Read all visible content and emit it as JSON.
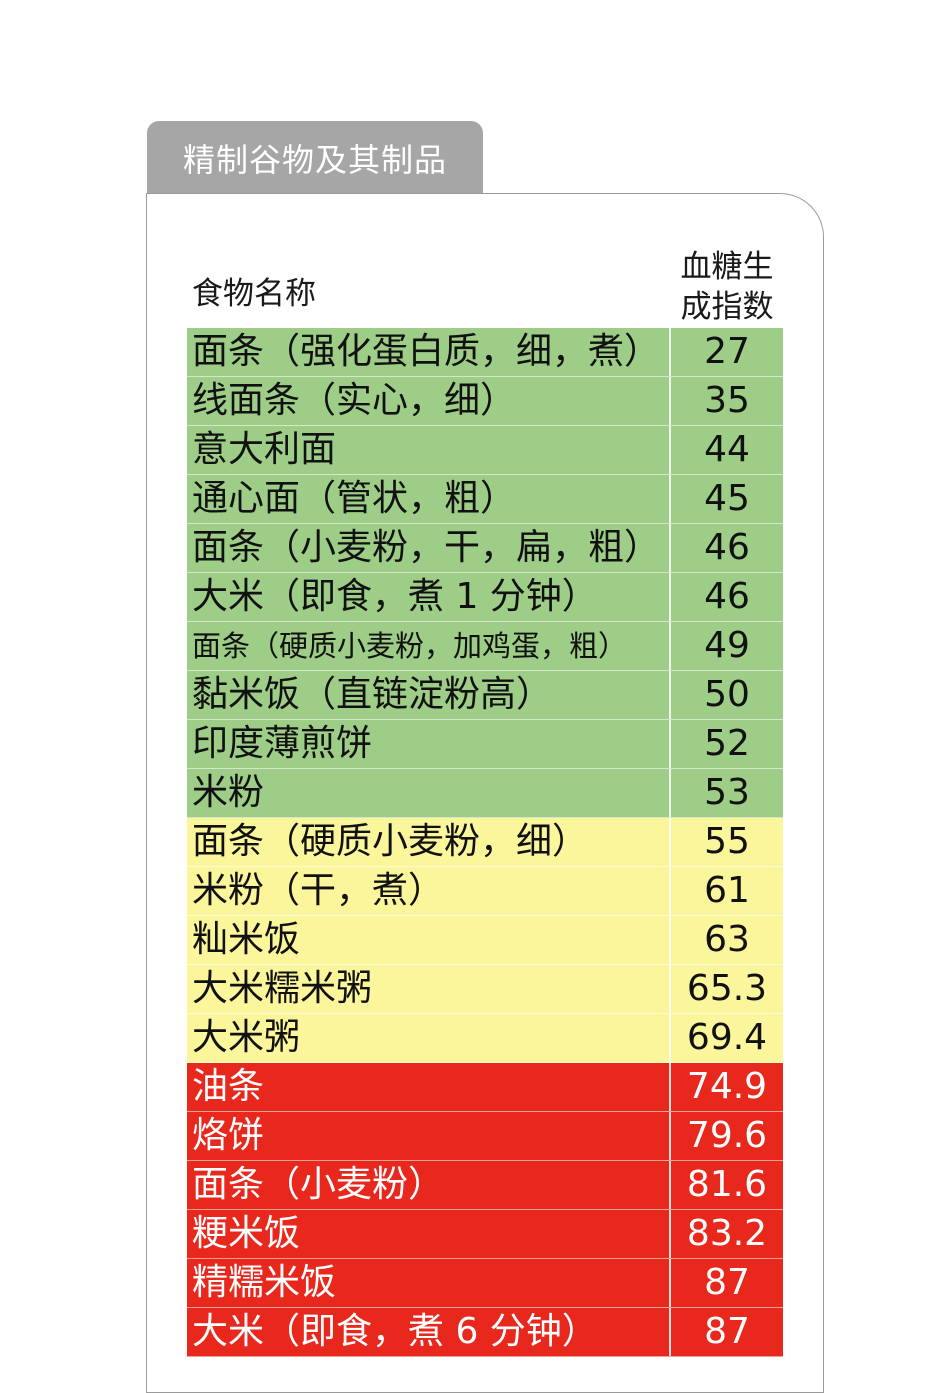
{
  "category": "精制谷物及其制品",
  "header": {
    "name_label": "食物名称",
    "gi_label_line1": "血糖生",
    "gi_label_line2": "成指数"
  },
  "colors": {
    "low": "#9dcd86",
    "medium": "#fbf59b",
    "high": "#e8281c"
  },
  "rows": [
    {
      "name": "面条（强化蛋白质，细，煮）",
      "gi": "27",
      "level": "low"
    },
    {
      "name": "线面条（实心，细）",
      "gi": "35",
      "level": "low"
    },
    {
      "name": "意大利面",
      "gi": "44",
      "level": "low"
    },
    {
      "name": "通心面（管状，粗）",
      "gi": "45",
      "level": "low"
    },
    {
      "name": "面条（小麦粉，干，扁，粗）",
      "gi": "46",
      "level": "low"
    },
    {
      "name": "大米（即食，煮 1 分钟）",
      "gi": "46",
      "level": "low"
    },
    {
      "name": "面条（硬质小麦粉，加鸡蛋，粗）",
      "gi": "49",
      "level": "low",
      "small": true
    },
    {
      "name": "黏米饭（直链淀粉高）",
      "gi": "50",
      "level": "low"
    },
    {
      "name": "印度薄煎饼",
      "gi": "52",
      "level": "low"
    },
    {
      "name": "米粉",
      "gi": "53",
      "level": "low"
    },
    {
      "name": "面条（硬质小麦粉，细）",
      "gi": "55",
      "level": "medium"
    },
    {
      "name": "米粉（干，煮）",
      "gi": "61",
      "level": "medium"
    },
    {
      "name": "籼米饭",
      "gi": "63",
      "level": "medium"
    },
    {
      "name": "大米糯米粥",
      "gi": "65.3",
      "level": "medium"
    },
    {
      "name": "大米粥",
      "gi": "69.4",
      "level": "medium"
    },
    {
      "name": "油条",
      "gi": "74.9",
      "level": "high"
    },
    {
      "name": "烙饼",
      "gi": "79.6",
      "level": "high"
    },
    {
      "name": "面条（小麦粉）",
      "gi": "81.6",
      "level": "high"
    },
    {
      "name": "粳米饭",
      "gi": "83.2",
      "level": "high"
    },
    {
      "name": "精糯米饭",
      "gi": "87",
      "level": "high"
    },
    {
      "name": "大米（即食，煮 6 分钟）",
      "gi": "87",
      "level": "high"
    }
  ]
}
